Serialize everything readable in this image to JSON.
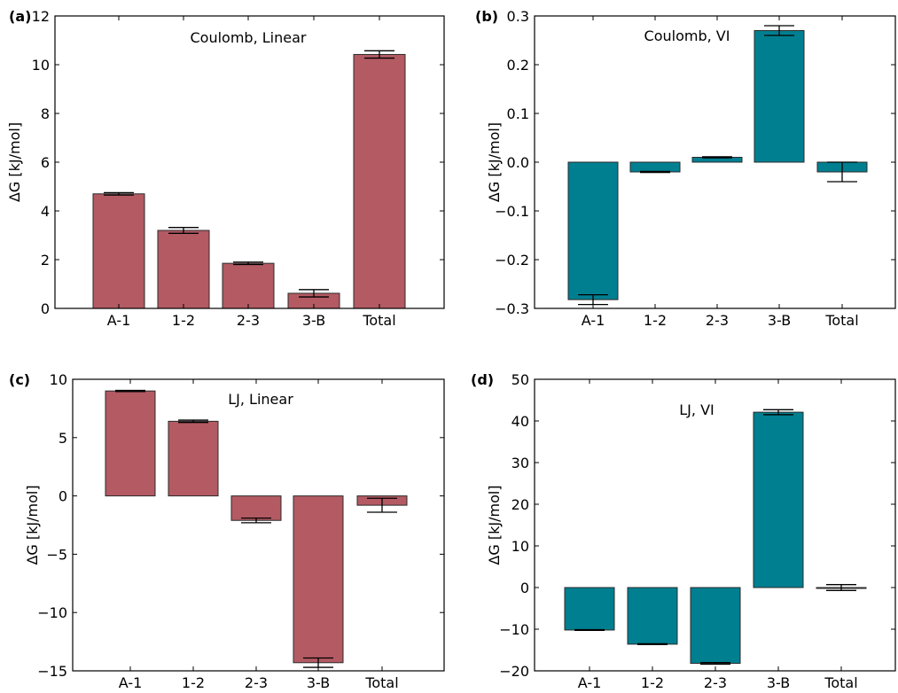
{
  "colors": {
    "red": "#b35a63",
    "teal": "#007f91",
    "edge": "#2b2b2b"
  },
  "chart_data": [
    {
      "panel_label": "(a)",
      "type": "bar",
      "annotation": "Coulomb, Linear",
      "ylabel": "ΔG [kJ/mol]",
      "color_key": "red",
      "categories": [
        "A-1",
        "1-2",
        "2-3",
        "3-B",
        "Total"
      ],
      "values": [
        4.7,
        3.2,
        1.85,
        0.62,
        10.42
      ],
      "errors": [
        0.05,
        0.12,
        0.05,
        0.15,
        0.15
      ],
      "ylim": [
        0,
        12
      ],
      "yticks": [
        0,
        2,
        4,
        6,
        8,
        10,
        12
      ],
      "ytick_labels": [
        "0",
        "2",
        "4",
        "6",
        "8",
        "10",
        "12"
      ]
    },
    {
      "panel_label": "(b)",
      "type": "bar",
      "annotation": "Coulomb, VI",
      "ylabel": "ΔG [kJ/mol]",
      "color_key": "teal",
      "categories": [
        "A-1",
        "1-2",
        "2-3",
        "3-B",
        "Total"
      ],
      "values": [
        -0.282,
        -0.02,
        0.01,
        0.27,
        -0.02
      ],
      "errors": [
        0.01,
        0.001,
        0.001,
        0.01,
        0.02
      ],
      "ylim": [
        -0.3,
        0.3
      ],
      "yticks": [
        -0.3,
        -0.2,
        -0.1,
        0.0,
        0.1,
        0.2,
        0.3
      ],
      "ytick_labels": [
        "−0.3",
        "−0.2",
        "−0.1",
        "0.0",
        "0.1",
        "0.2",
        "0.3"
      ]
    },
    {
      "panel_label": "(c)",
      "type": "bar",
      "annotation": "LJ, Linear",
      "ylabel": "ΔG [kJ/mol]",
      "color_key": "red",
      "categories": [
        "A-1",
        "1-2",
        "2-3",
        "3-B",
        "Total"
      ],
      "values": [
        9.0,
        6.4,
        -2.1,
        -14.3,
        -0.8
      ],
      "errors": [
        0.05,
        0.1,
        0.2,
        0.4,
        0.6
      ],
      "ylim": [
        -15,
        10
      ],
      "yticks": [
        -15,
        -10,
        -5,
        0,
        5,
        10
      ],
      "ytick_labels": [
        "−15",
        "−10",
        "−5",
        "0",
        "5",
        "10"
      ]
    },
    {
      "panel_label": "(d)",
      "type": "bar",
      "annotation": "LJ, VI",
      "ylabel": "ΔG [kJ/mol]",
      "color_key": "teal",
      "categories": [
        "A-1",
        "1-2",
        "2-3",
        "3-B",
        "Total"
      ],
      "values": [
        -10.2,
        -13.6,
        -18.2,
        42.1,
        0.0
      ],
      "errors": [
        0.1,
        0.1,
        0.2,
        0.6,
        0.7
      ],
      "ylim": [
        -20,
        50
      ],
      "yticks": [
        -20,
        -10,
        0,
        10,
        20,
        30,
        40,
        50
      ],
      "ytick_labels": [
        "−20",
        "−10",
        "0",
        "10",
        "20",
        "30",
        "40",
        "50"
      ]
    }
  ]
}
